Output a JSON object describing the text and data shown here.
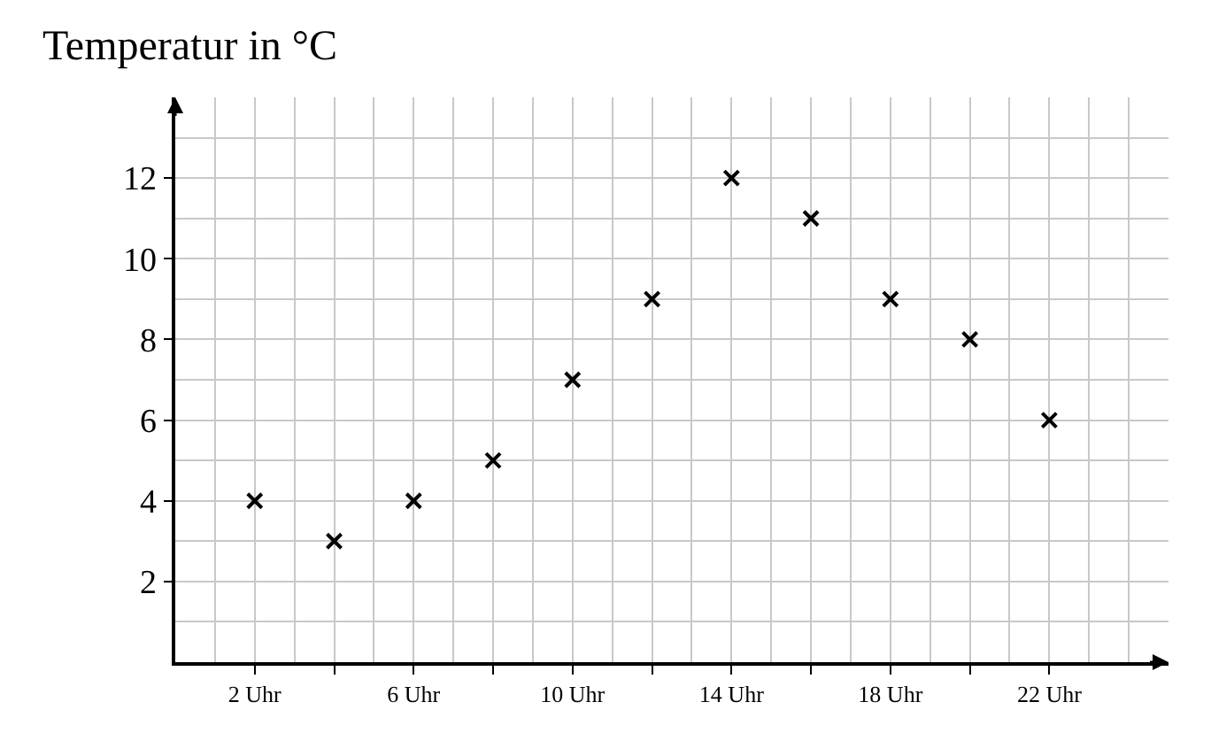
{
  "chart_data": {
    "type": "scatter",
    "title": "Temperatur in °C",
    "x": [
      2,
      4,
      6,
      8,
      10,
      12,
      14,
      16,
      18,
      20,
      22
    ],
    "values": [
      4,
      3,
      4,
      5,
      7,
      9,
      12,
      11,
      9,
      8,
      6
    ],
    "color": "#000000",
    "marker": "cross",
    "xlim": [
      0,
      25
    ],
    "ylim": [
      0,
      14
    ],
    "xticks": [
      {
        "value": 2,
        "label": "2 Uhr"
      },
      {
        "value": 4,
        "label": null
      },
      {
        "value": 6,
        "label": "6 Uhr"
      },
      {
        "value": 8,
        "label": null
      },
      {
        "value": 10,
        "label": "10 Uhr"
      },
      {
        "value": 12,
        "label": null
      },
      {
        "value": 14,
        "label": "14 Uhr"
      },
      {
        "value": 16,
        "label": null
      },
      {
        "value": 18,
        "label": "18 Uhr"
      },
      {
        "value": 20,
        "label": null
      },
      {
        "value": 22,
        "label": "22 Uhr"
      }
    ],
    "yticks": [
      2,
      4,
      6,
      8,
      10,
      12
    ],
    "grid": true,
    "legend": false
  }
}
